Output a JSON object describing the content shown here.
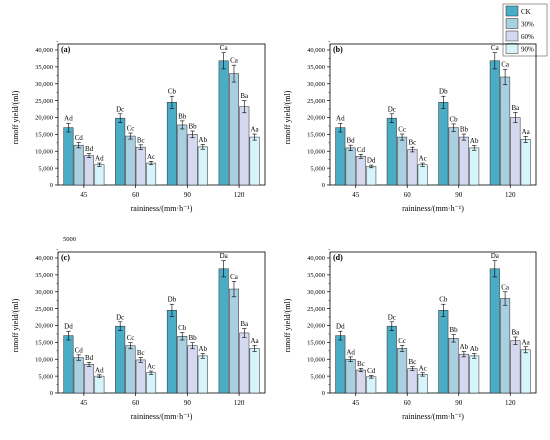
{
  "legend": {
    "items": [
      {
        "label": "CK",
        "color": "#4bacc6"
      },
      {
        "label": "30%",
        "color": "#a9cfe1"
      },
      {
        "label": "60%",
        "color": "#d5d9f0"
      },
      {
        "label": "90%",
        "color": "#d6f4fb"
      }
    ]
  },
  "stray_text": "5000",
  "chart_data": [
    {
      "type": "bar",
      "panel_label": "(a)",
      "categories": [
        "45",
        "60",
        "90",
        "120"
      ],
      "xlabel": "raininess/(mm·h⁻¹)",
      "ylabel": "runoff  yield/(ml)",
      "ylim": [
        0,
        40000
      ],
      "yticks": [
        "0",
        "5,000",
        "10,000",
        "15,000",
        "20,000",
        "25,000",
        "30,000",
        "35,000",
        "40,000"
      ],
      "series": [
        {
          "name": "CK",
          "values": [
            17000,
            19800,
            24500,
            36800
          ],
          "errors": [
            1300,
            1300,
            1800,
            2400
          ],
          "labels": [
            "Ad",
            "Dc",
            "Cb",
            "Ca"
          ]
        },
        {
          "name": "30%",
          "values": [
            11800,
            14500,
            17800,
            33000
          ],
          "errors": [
            800,
            900,
            1200,
            2500
          ],
          "labels": [
            "Cd",
            "Cc",
            "Bb",
            "Ca"
          ]
        },
        {
          "name": "60%",
          "values": [
            8700,
            11200,
            15000,
            23200
          ],
          "errors": [
            600,
            700,
            1000,
            1800
          ],
          "labels": [
            "Bd",
            "Bc",
            "Bb",
            "Ba"
          ]
        },
        {
          "name": "90%",
          "values": [
            6000,
            6500,
            11300,
            14200
          ],
          "errors": [
            500,
            500,
            700,
            900
          ],
          "labels": [
            "Ad",
            "Ac",
            "Ab",
            "Aa"
          ]
        }
      ]
    },
    {
      "type": "bar",
      "panel_label": "(b)",
      "categories": [
        "45",
        "60",
        "90",
        "120"
      ],
      "xlabel": "raininess/(mm·h⁻¹)",
      "ylabel": "runoff  yield/(ml)",
      "ylim": [
        0,
        40000
      ],
      "yticks": [
        "0",
        "5,000",
        "10,000",
        "15,000",
        "20,000",
        "25,000",
        "30,000",
        "35,000",
        "40,000"
      ],
      "series": [
        {
          "name": "CK",
          "values": [
            17000,
            19800,
            24500,
            36800
          ],
          "errors": [
            1300,
            1300,
            1800,
            2400
          ],
          "labels": [
            "Ad",
            "Dc",
            "Db",
            "Ca"
          ]
        },
        {
          "name": "30%",
          "values": [
            11000,
            14200,
            17000,
            32000
          ],
          "errors": [
            800,
            900,
            1100,
            2300
          ],
          "labels": [
            "Bd",
            "Cc",
            "Cb",
            "Ca"
          ]
        },
        {
          "name": "60%",
          "values": [
            8500,
            10500,
            14200,
            20000
          ],
          "errors": [
            600,
            700,
            900,
            1500
          ],
          "labels": [
            "Cd",
            "Bc",
            "Bb",
            "Ba"
          ]
        },
        {
          "name": "90%",
          "values": [
            5500,
            6000,
            11000,
            13500
          ],
          "errors": [
            400,
            500,
            700,
            900
          ],
          "labels": [
            "Dd",
            "Ac",
            "Ab",
            "Aa"
          ]
        }
      ]
    },
    {
      "type": "bar",
      "panel_label": "(c)",
      "categories": [
        "45",
        "60",
        "90",
        "120"
      ],
      "xlabel": "raininess/(mm·h⁻¹)",
      "ylabel": "runoff  yield/(ml)",
      "ylim": [
        0,
        40000
      ],
      "yticks": [
        "0",
        "5,000",
        "10,000",
        "15,000",
        "20,000",
        "25,000",
        "30,000",
        "35,000",
        "40,000"
      ],
      "series": [
        {
          "name": "CK",
          "values": [
            17000,
            19800,
            24500,
            36800
          ],
          "errors": [
            1300,
            1300,
            1800,
            2400
          ],
          "labels": [
            "Dd",
            "Dc",
            "Db",
            "Da"
          ]
        },
        {
          "name": "30%",
          "values": [
            10500,
            14000,
            16800,
            30800
          ],
          "errors": [
            800,
            900,
            1100,
            2300
          ],
          "labels": [
            "Cd",
            "Cc",
            "Cb",
            "Ca"
          ]
        },
        {
          "name": "60%",
          "values": [
            8500,
            9800,
            14000,
            17800
          ],
          "errors": [
            600,
            700,
            900,
            1300
          ],
          "labels": [
            "Bd",
            "Bc",
            "Bb",
            "Ba"
          ]
        },
        {
          "name": "90%",
          "values": [
            5000,
            6000,
            11000,
            13200
          ],
          "errors": [
            400,
            500,
            700,
            900
          ],
          "labels": [
            "Ad",
            "Ac",
            "Ab",
            "Aa"
          ]
        }
      ]
    },
    {
      "type": "bar",
      "panel_label": "(d)",
      "categories": [
        "45",
        "60",
        "90",
        "120"
      ],
      "xlabel": "raininess/(mm·h⁻¹)",
      "ylabel": "runoff  yield/(ml)",
      "ylim": [
        0,
        40000
      ],
      "yticks": [
        "0",
        "5,000",
        "10,000",
        "15,000",
        "20,000",
        "25,000",
        "30,000",
        "35,000",
        "40,000"
      ],
      "series": [
        {
          "name": "CK",
          "values": [
            17000,
            19800,
            24500,
            36800
          ],
          "errors": [
            1300,
            1300,
            1800,
            2400
          ],
          "labels": [
            "Dd",
            "Dc",
            "Cb",
            "Da"
          ]
        },
        {
          "name": "30%",
          "values": [
            10000,
            13200,
            16200,
            28000
          ],
          "errors": [
            700,
            900,
            1100,
            2000
          ],
          "labels": [
            "Ad",
            "Cc",
            "Bb",
            "Ca"
          ]
        },
        {
          "name": "60%",
          "values": [
            6800,
            7200,
            11500,
            15500
          ],
          "errors": [
            500,
            600,
            800,
            1100
          ],
          "labels": [
            "Bc",
            "Bc",
            "Ab",
            "Ba"
          ]
        },
        {
          "name": "90%",
          "values": [
            4800,
            5500,
            11000,
            12800
          ],
          "errors": [
            400,
            500,
            700,
            900
          ],
          "labels": [
            "Cd",
            "Ac",
            "Ab",
            "Aa"
          ]
        }
      ]
    }
  ]
}
